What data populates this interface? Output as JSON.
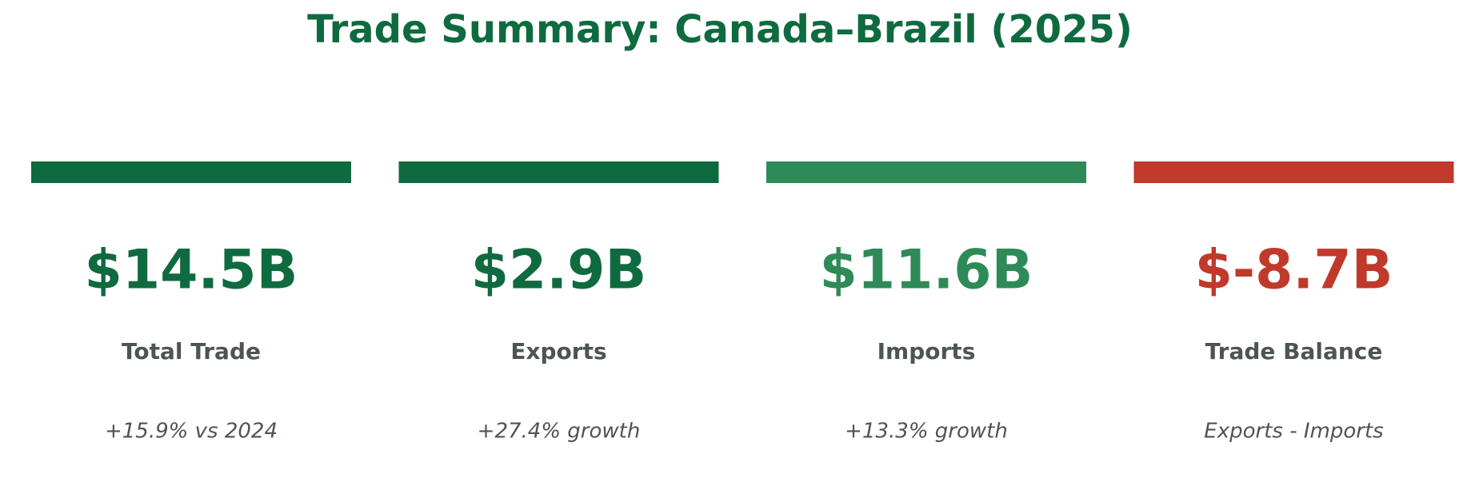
{
  "title": "Trade Summary: Canada–Brazil (2025)",
  "cards": [
    {
      "value": "$14.5B",
      "label": "Total Trade",
      "note": "+15.9% vs 2024",
      "color": "#0f6b3f"
    },
    {
      "value": "$2.9B",
      "label": "Exports",
      "note": "+27.4% growth",
      "color": "#0f6b3f"
    },
    {
      "value": "$11.6B",
      "label": "Imports",
      "note": "+13.3% growth",
      "color": "#2e8b57"
    },
    {
      "value": "$-8.7B",
      "label": "Trade Balance",
      "note": "Exports - Imports",
      "color": "#c0392b"
    }
  ]
}
